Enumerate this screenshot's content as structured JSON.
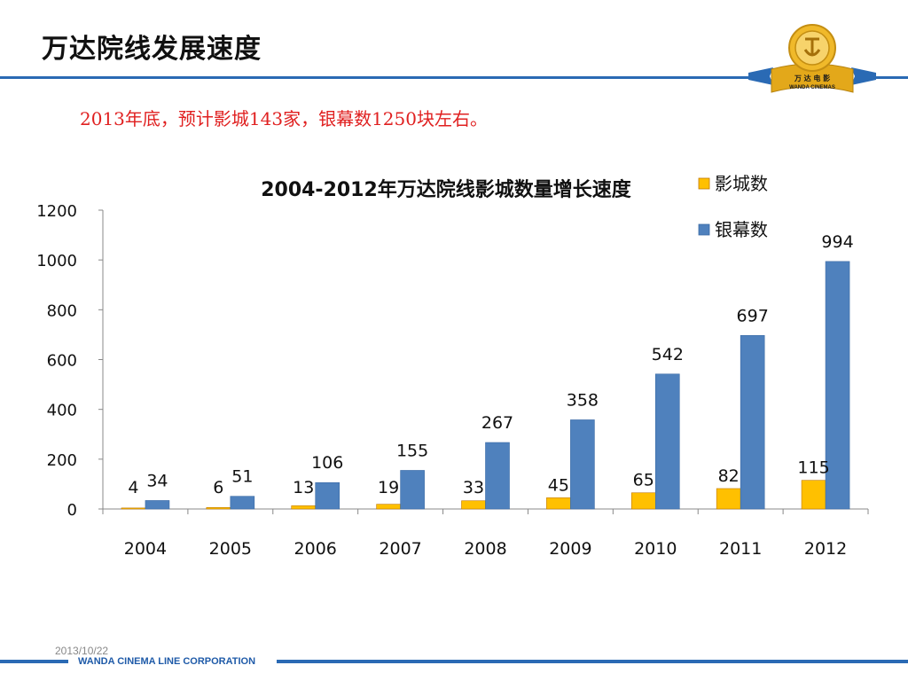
{
  "slide": {
    "title": "万达院线发展速度",
    "subtitle": "2013年底，预计影城143家，银幕数1250块左右。",
    "footer_date": "2013/10/22",
    "footer_corp": "WANDA CINEMA LINE CORPORATION",
    "logo_text_cn": "万 达 电 影",
    "logo_text_en": "WANDA CINEMAS"
  },
  "colors": {
    "accent_blue": "#2a6ab4",
    "cinemas": "#ffc000",
    "screens": "#4f81bd",
    "subtitle_red": "#e02020"
  },
  "chart_data": {
    "type": "bar",
    "title": "2004-2012年万达院线影城数量增长速度",
    "categories": [
      "2004",
      "2005",
      "2006",
      "2007",
      "2008",
      "2009",
      "2010",
      "2011",
      "2012"
    ],
    "series": [
      {
        "name": "影城数",
        "values": [
          4,
          6,
          13,
          19,
          33,
          45,
          65,
          82,
          115
        ]
      },
      {
        "name": "银幕数",
        "values": [
          34,
          51,
          106,
          155,
          267,
          358,
          542,
          697,
          994
        ]
      }
    ],
    "ylim": [
      0,
      1200
    ],
    "yticks": [
      0,
      200,
      400,
      600,
      800,
      1000,
      1200
    ],
    "legend_position": "top-right",
    "xlabel": "",
    "ylabel": ""
  }
}
